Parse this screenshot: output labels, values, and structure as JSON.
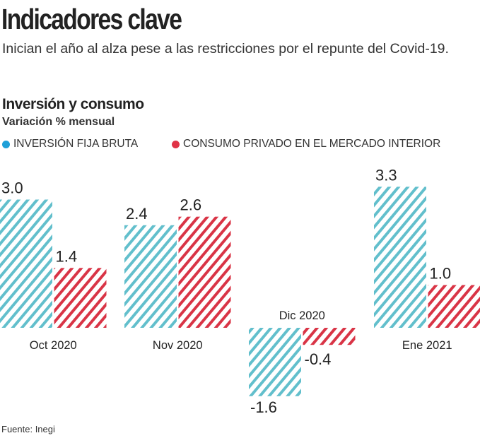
{
  "header": {
    "title": "Indicadores clave",
    "subtitle": "Inician el año al alza pese a las restricciones por el repunte del Covid-19."
  },
  "source": "Fuente: Inegi",
  "colors": {
    "inversion": "#1fa0d8",
    "consumo": "#e03347",
    "inversion_hatch": "#62bfcc",
    "consumo_hatch": "#d93446"
  },
  "chart_data": {
    "type": "bar",
    "title": "Inversión y consumo",
    "subtitle": "Variación % mensual",
    "categories": [
      "Oct 2020",
      "Nov 2020",
      "Dic 2020",
      "Ene 2021"
    ],
    "series": [
      {
        "name": "INVERSIÓN FIJA BRUTA",
        "values": [
          3.0,
          2.4,
          -1.6,
          3.3
        ],
        "labels": [
          "3.0",
          "2.4",
          "-1.6",
          "3.3"
        ]
      },
      {
        "name": "CONSUMO PRIVADO EN EL MERCADO INTERIOR",
        "values": [
          1.4,
          2.6,
          -0.4,
          1.0
        ],
        "labels": [
          "1.4",
          "2.6",
          "-0.4",
          "1.0"
        ]
      }
    ],
    "legend": "top-left",
    "grid": false,
    "style": "hatched"
  }
}
